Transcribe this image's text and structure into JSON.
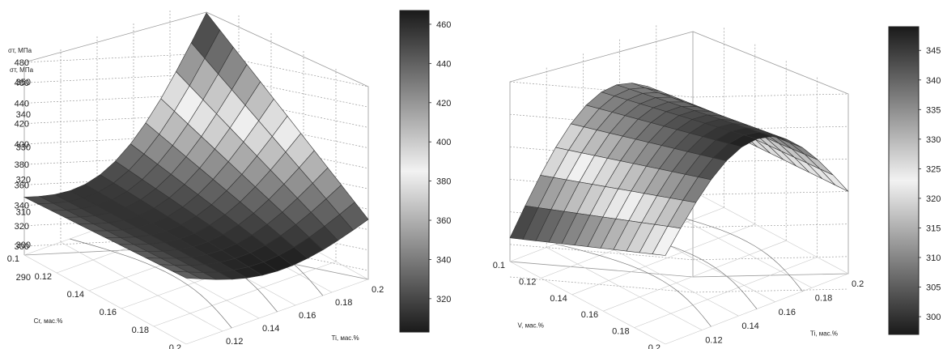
{
  "chart_data": [
    {
      "type": "surface",
      "zlabel": "σт, МПа",
      "xlabel": "Cr, мас.%",
      "ylabel": "Ti, мас.%",
      "x_ticks": [
        "0.1",
        "0.12",
        "0.14",
        "0.16",
        "0.18",
        "0.2"
      ],
      "y_ticks": [
        "0.1",
        "0.12",
        "0.14",
        "0.16",
        "0.18",
        "0.2"
      ],
      "z_ticks": [
        "300",
        "320",
        "340",
        "360",
        "380",
        "400",
        "420",
        "440",
        "460",
        "480"
      ],
      "zlim": [
        300,
        480
      ],
      "colorbar": {
        "ticks": [
          "320",
          "340",
          "360",
          "380",
          "400",
          "420",
          "440",
          "460"
        ],
        "range": [
          303,
          467
        ]
      },
      "corners": {
        "cr0.2_ti0.1": 348,
        "cr0.1_ti0.1": 356,
        "cr0.1_ti0.2": 350,
        "cr0.2_ti0.2": 465
      }
    },
    {
      "type": "surface",
      "zlabel": "σт, МПа",
      "xlabel": "V, мас.%",
      "ylabel": "Ti, мас.%",
      "x_ticks": [
        "0.1",
        "0.12",
        "0.14",
        "0.16",
        "0.18",
        "0.2"
      ],
      "y_ticks": [
        "0.1",
        "0.12",
        "0.14",
        "0.16",
        "0.18",
        "0.2"
      ],
      "z_ticks": [
        "290",
        "300",
        "310",
        "320",
        "330",
        "340",
        "350"
      ],
      "zlim": [
        290,
        350
      ],
      "colorbar": {
        "ticks": [
          "300",
          "305",
          "310",
          "315",
          "320",
          "325",
          "330",
          "335",
          "340",
          "345"
        ],
        "range": [
          297,
          349
        ]
      },
      "corners": {
        "v0.2_ti0.1": 302,
        "v0.1_ti0.1": 322,
        "v0.1_ti0.2": 320,
        "v0.2_ti0.2": 318
      }
    }
  ]
}
